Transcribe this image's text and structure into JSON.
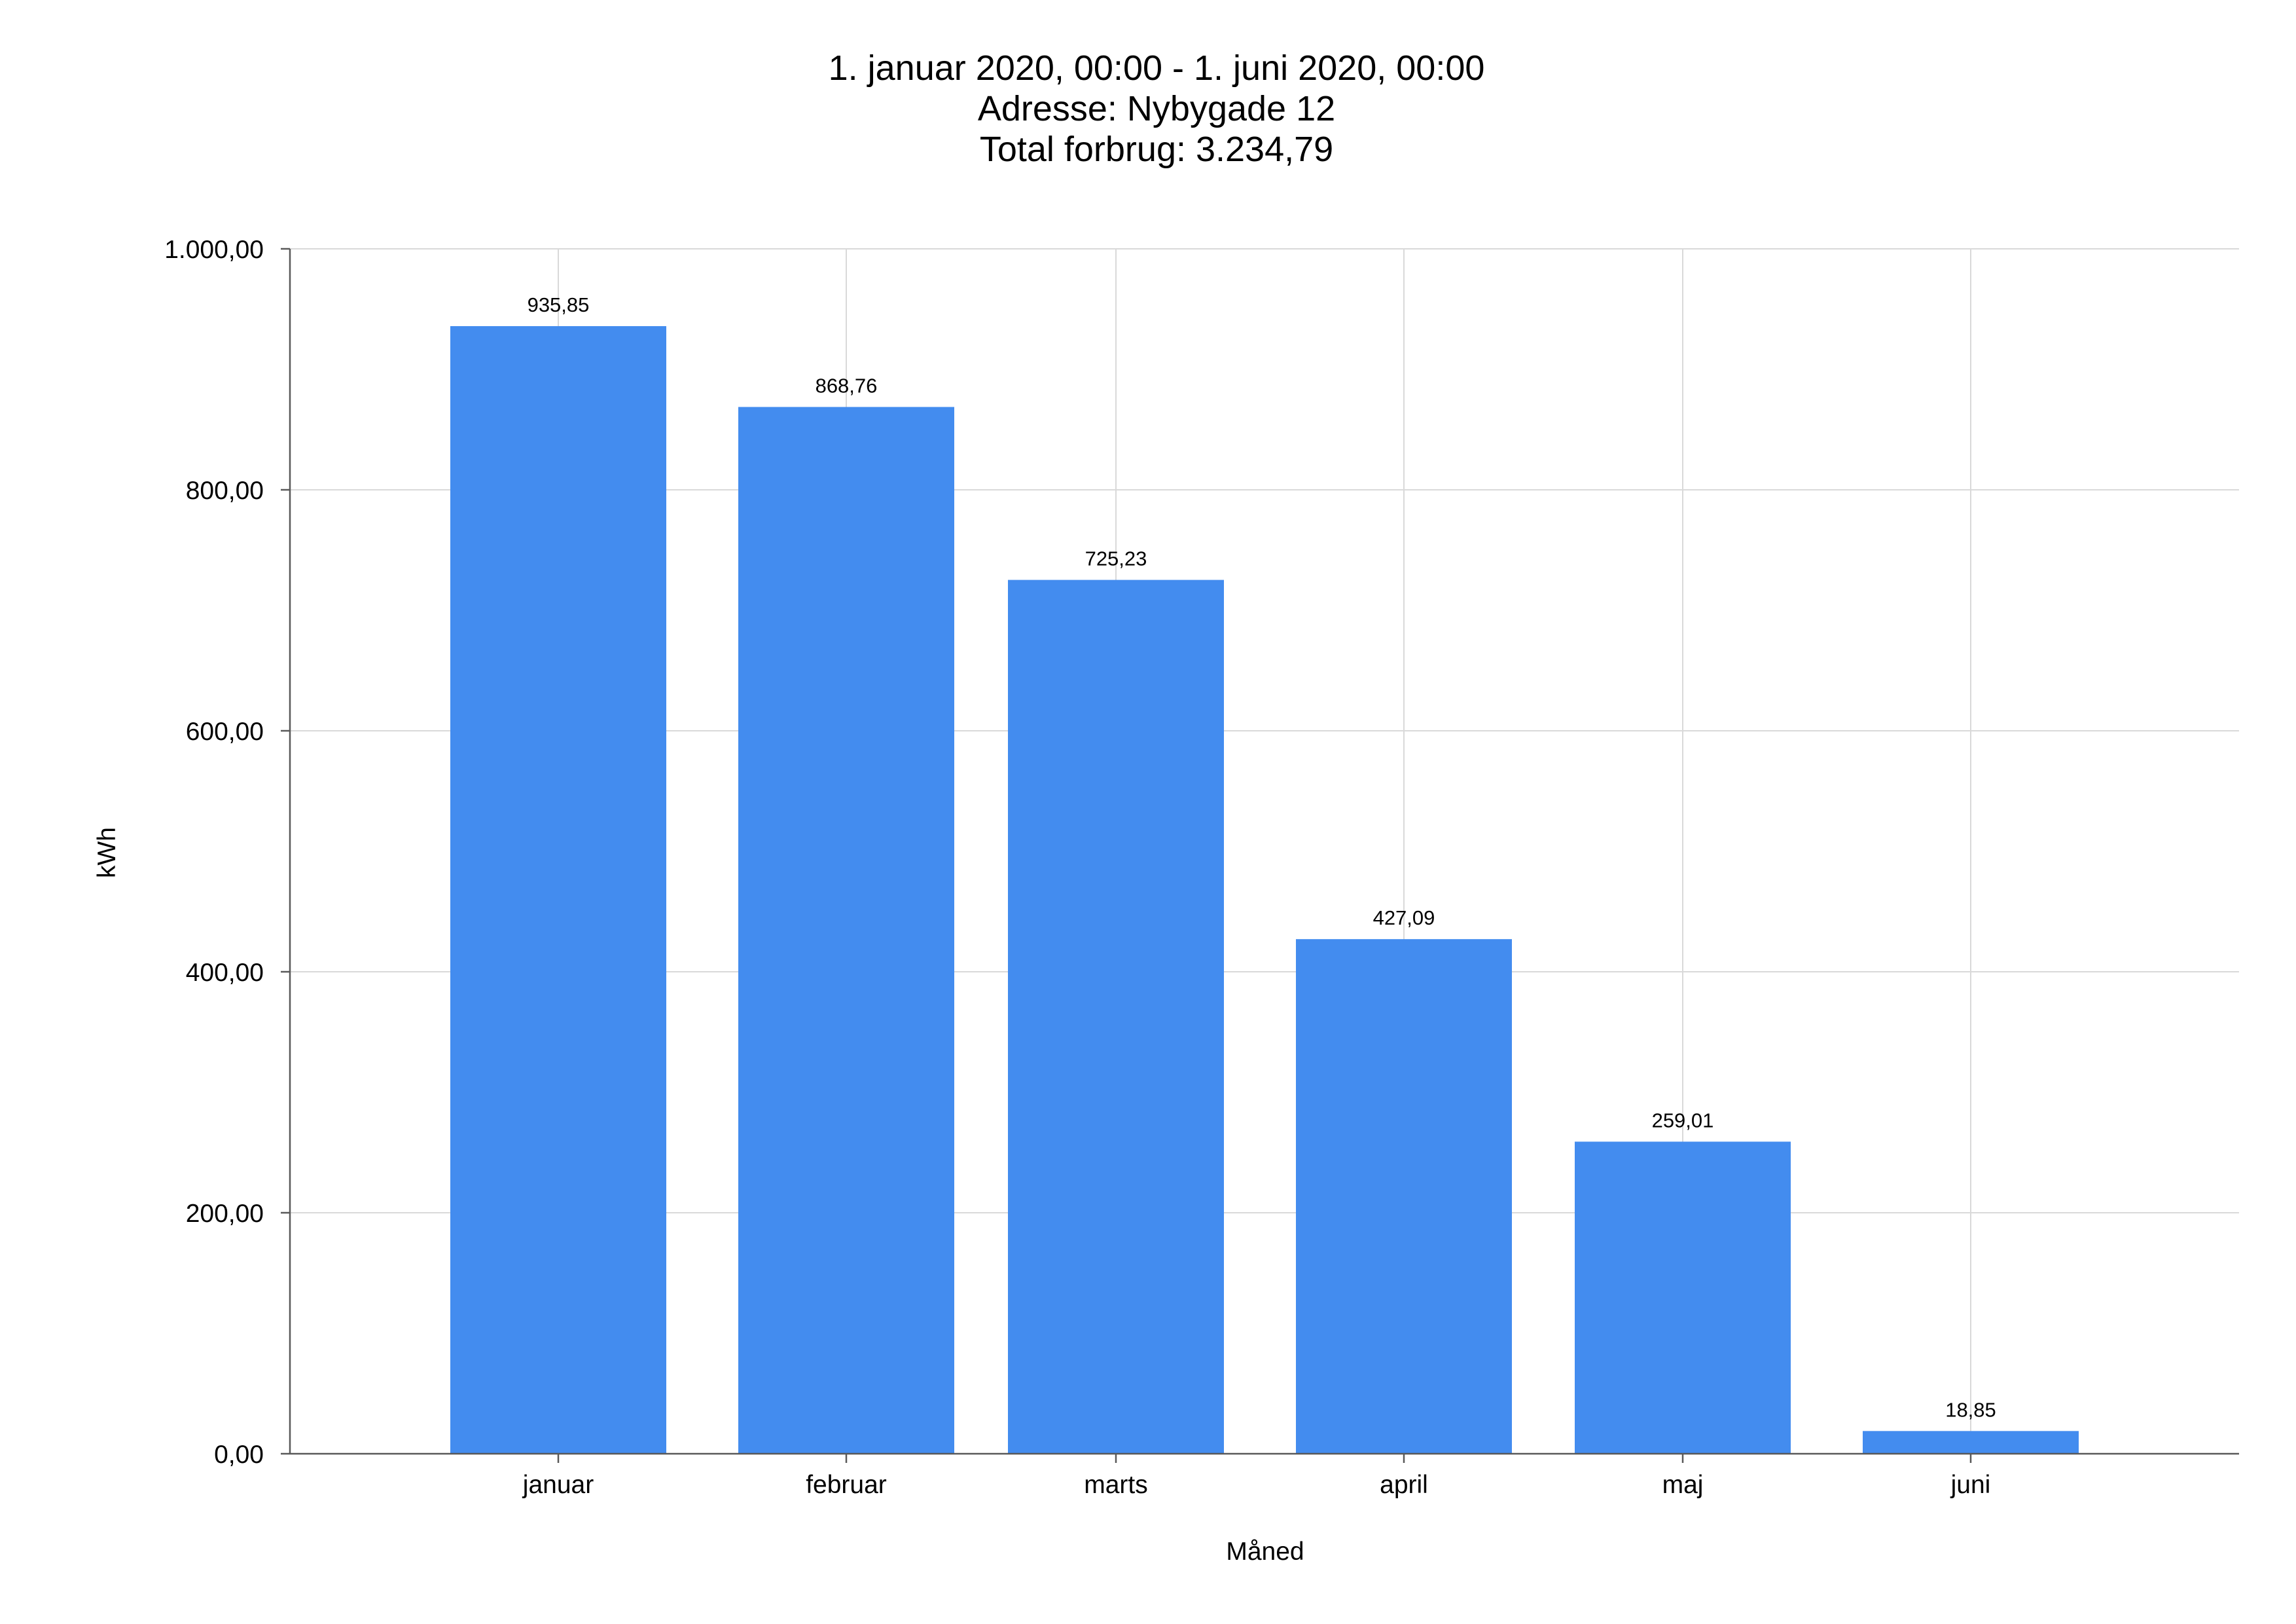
{
  "chart_data": {
    "type": "bar",
    "title_lines": [
      "1. januar 2020, 00:00 - 1. juni 2020, 00:00",
      "Adresse: Nybygade 12",
      "Total forbrug: 3.234,79"
    ],
    "xlabel": "Måned",
    "ylabel": "kWh",
    "categories": [
      "januar",
      "februar",
      "marts",
      "april",
      "maj",
      "juni"
    ],
    "values": [
      935.85,
      868.76,
      725.23,
      427.09,
      259.01,
      18.85
    ],
    "value_labels": [
      "935,85",
      "868,76",
      "725,23",
      "427,09",
      "259,01",
      "18,85"
    ],
    "ylim": [
      0,
      1000
    ],
    "yticks": [
      0,
      200,
      400,
      600,
      800,
      1000
    ],
    "ytick_labels": [
      "0,00",
      "200,00",
      "400,00",
      "600,00",
      "800,00",
      "1.000,00"
    ],
    "grid": true,
    "legend": "none",
    "bar_color": "#438CEF"
  }
}
